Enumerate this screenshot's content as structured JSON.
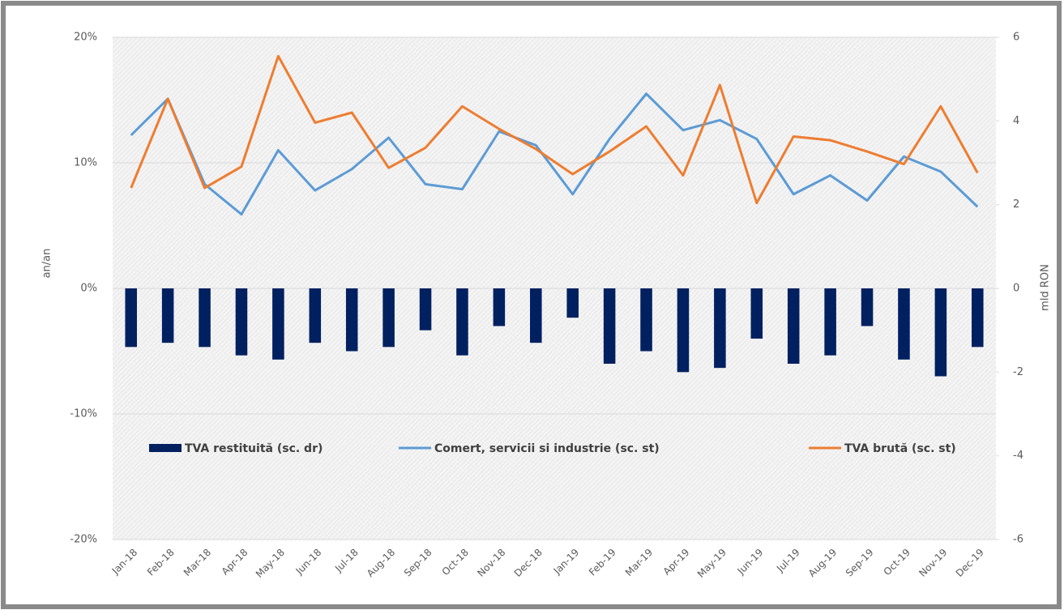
{
  "chart_data": {
    "type": "combo",
    "ylabel": "an/an",
    "y2label": "mld RON",
    "categories": [
      "Jan-18",
      "Feb-18",
      "Mar-18",
      "Apr-18",
      "May-18",
      "Jun-18",
      "Jul-18",
      "Aug-18",
      "Sep-18",
      "Oct-18",
      "Nov-18",
      "Dec-18",
      "Jan-19",
      "Feb-19",
      "Mar-19",
      "Apr-19",
      "May-19",
      "Jun-19",
      "Jul-19",
      "Aug-19",
      "Sep-19",
      "Oct-19",
      "Nov-19",
      "Dec-19"
    ],
    "series": [
      {
        "name": "TVA restituită (sc. dr)",
        "type": "bar",
        "axis": "y2",
        "color": "#002060",
        "values": [
          -1.4,
          -1.3,
          -1.4,
          -1.6,
          -1.7,
          -1.3,
          -1.5,
          -1.4,
          -1.0,
          -1.6,
          -0.9,
          -1.3,
          -0.7,
          -1.8,
          -1.5,
          -2.0,
          -1.9,
          -1.2,
          -1.8,
          -1.6,
          -0.9,
          -1.7,
          -2.1,
          -1.4
        ]
      },
      {
        "name": "Comert, servicii si industrie (sc. st)",
        "type": "line",
        "color": "#5b9bd5",
        "values": [
          12.2,
          15.1,
          8.3,
          5.9,
          11.0,
          7.8,
          9.5,
          12.0,
          8.3,
          7.9,
          12.5,
          11.4,
          7.5,
          11.9,
          15.5,
          12.6,
          13.4,
          11.9,
          7.5,
          9.0,
          7.0,
          10.5,
          9.3,
          6.5
        ]
      },
      {
        "name": "TVA brută (sc. st)",
        "type": "line",
        "color": "#ed7d31",
        "values": [
          8.0,
          15.1,
          8.0,
          9.7,
          18.5,
          13.2,
          14.0,
          9.6,
          11.2,
          14.5,
          12.7,
          11.1,
          9.1,
          10.9,
          12.9,
          9.0,
          16.2,
          6.8,
          12.1,
          11.8,
          10.9,
          9.9,
          14.5,
          9.2
        ]
      }
    ],
    "ylim": [
      -20,
      20
    ],
    "yticks": [
      {
        "value": -20,
        "label": "-20%"
      },
      {
        "value": -10,
        "label": "-10%"
      },
      {
        "value": 0,
        "label": "0%"
      },
      {
        "value": 10,
        "label": "10%"
      },
      {
        "value": 20,
        "label": "20%"
      }
    ],
    "y2lim": [
      -6,
      6
    ],
    "y2ticks": [
      -6,
      -4,
      -2,
      0,
      2,
      4,
      6
    ],
    "grid": true
  }
}
